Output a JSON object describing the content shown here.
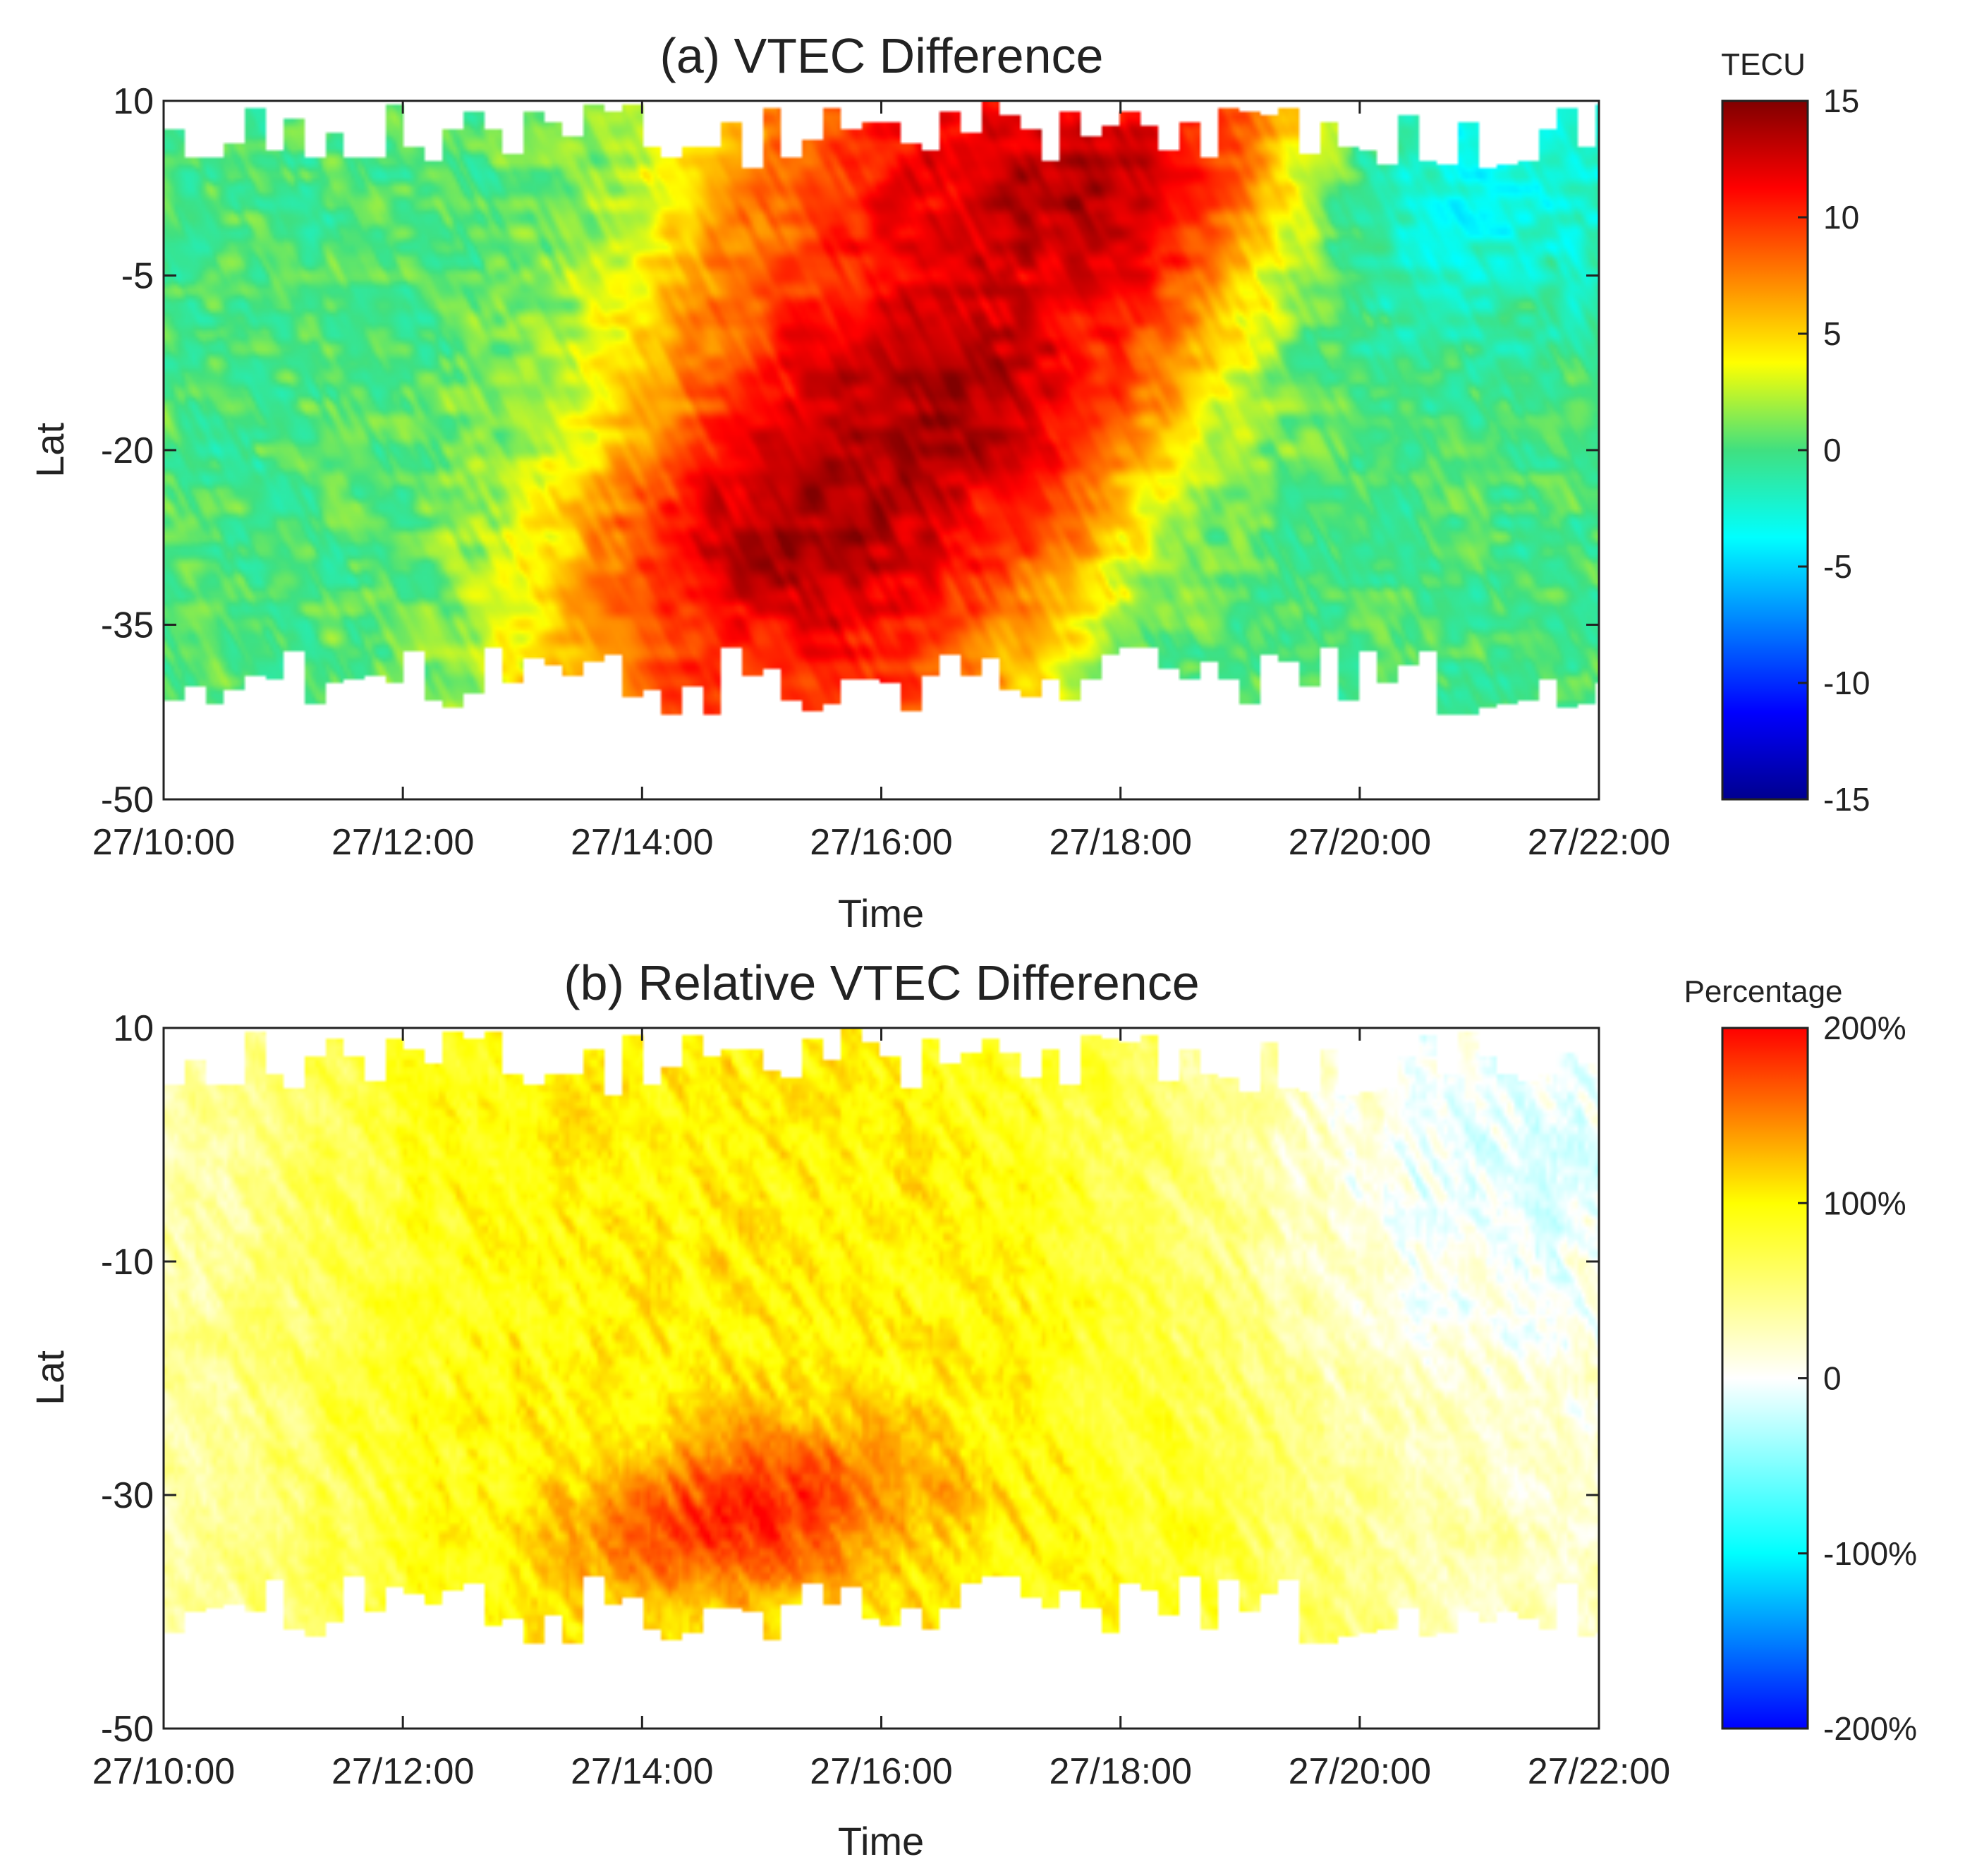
{
  "chart_data": [
    {
      "type": "heatmap",
      "title": "(a) VTEC Difference",
      "xlabel": "Time",
      "ylabel": "Lat",
      "x_ticks": [
        "27/10:00",
        "27/12:00",
        "27/14:00",
        "27/16:00",
        "27/18:00",
        "27/20:00",
        "27/22:00"
      ],
      "x_range_hours": [
        10,
        22
      ],
      "y_ticks": [
        10,
        -5,
        -20,
        -35,
        -50
      ],
      "ylim": [
        -50,
        10
      ],
      "colorbar": {
        "label": "TECU",
        "min": -15,
        "max": 15,
        "ticks": [
          "15",
          "10",
          "5",
          "0",
          "-5",
          "-10",
          "-15"
        ],
        "colormap": "jet"
      },
      "coverage": {
        "north_edge_lat": 6,
        "south_edge_lat": -40,
        "start_hour": 10,
        "end_hour": 22
      },
      "enhancement": {
        "peak_value": 14,
        "background_value": 0,
        "core_centers": [
          {
            "hour": 16.5,
            "lat": -15
          },
          {
            "hour": 15.2,
            "lat": -28
          },
          {
            "hour": 17.7,
            "lat": 2
          }
        ],
        "leading_edge_at_north": 14.5,
        "leading_edge_at_south": 13.2,
        "trailing_edge_at_north": 19.6,
        "trailing_edge_at_south": 17.2,
        "dusk_depletion": {
          "hour": 20.8,
          "lat": 5,
          "value": -4
        }
      }
    },
    {
      "type": "heatmap",
      "title": "(b) Relative VTEC Difference",
      "xlabel": "Time",
      "ylabel": "Lat",
      "x_ticks": [
        "27/10:00",
        "27/12:00",
        "27/14:00",
        "27/16:00",
        "27/18:00",
        "27/20:00",
        "27/22:00"
      ],
      "x_range_hours": [
        10,
        22
      ],
      "y_ticks": [
        10,
        -10,
        -30,
        -50
      ],
      "ylim": [
        -50,
        10
      ],
      "colorbar": {
        "label": "Percentage",
        "min": -200,
        "max": 200,
        "ticks": [
          "200%",
          "100%",
          "0",
          "-100%",
          "-200%"
        ],
        "colormap": "blue-cyan-white-yellow-red"
      },
      "coverage": {
        "north_edge_lat": 6,
        "south_edge_lat": -40,
        "start_hour": 10,
        "end_hour": 22
      },
      "enhancement": {
        "peak_value_percent": 160,
        "broad_level_percent": 85,
        "core_centers": [
          {
            "hour": 14.5,
            "lat": -34
          },
          {
            "hour": 15.3,
            "lat": -29
          }
        ],
        "dusk_depletion": {
          "hour": 21,
          "lat": -2,
          "value_percent": -30
        }
      }
    }
  ]
}
